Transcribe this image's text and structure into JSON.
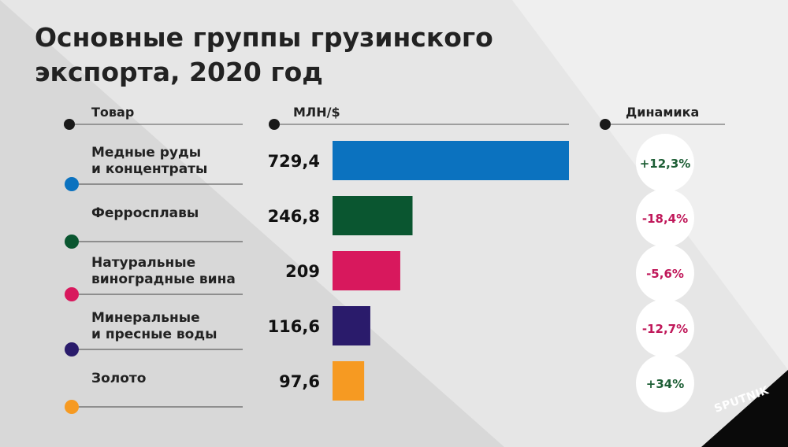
{
  "title_lines": [
    "Основные группы грузинского",
    "экспорта, 2020 год"
  ],
  "brand": "SPUTNIK",
  "colors": {
    "background": "#e6e6e6",
    "light_panel": "#f0f0f0",
    "positive": "#1d5e35",
    "negative": "#c0185a"
  },
  "chart_data": {
    "type": "bar",
    "orientation": "horizontal",
    "column_headers": {
      "item": "Товар",
      "value": "МЛН/$",
      "change": "Динамика"
    },
    "categories": [
      [
        "Медные руды",
        "и концентраты"
      ],
      [
        "Ферросплавы"
      ],
      [
        "Натуральные",
        "виноградные вина"
      ],
      [
        "Минеральные",
        "и пресные воды"
      ],
      [
        "Золото"
      ]
    ],
    "values": [
      729.4,
      246.8,
      209,
      116.6,
      97.6
    ],
    "value_labels": [
      "729,4",
      "246,8",
      "209",
      "116,6",
      "97,6"
    ],
    "colors": [
      "#0b72bf",
      "#0a5630",
      "#d8185d",
      "#2a1b6b",
      "#f69a22"
    ],
    "changes": [
      "+12,3%",
      "-18,4%",
      "-5,6%",
      "-12,7%",
      "+34%"
    ],
    "xlim": [
      0,
      729.4
    ]
  }
}
